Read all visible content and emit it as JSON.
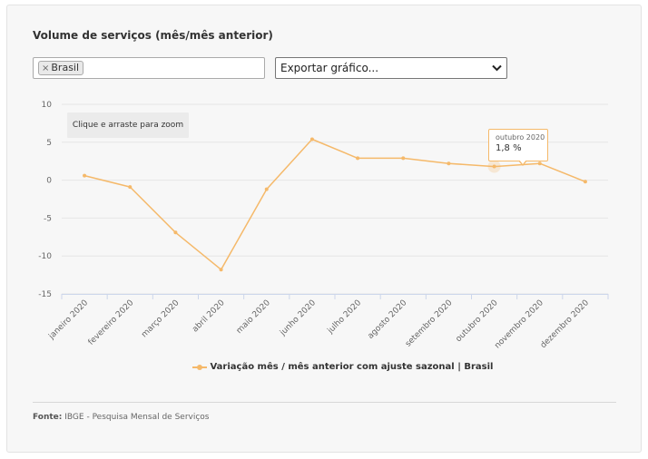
{
  "panel": {
    "title": "Volume de serviços (mês/mês anterior)",
    "filter": {
      "chip_label": "Brasil",
      "chip_remove": "×"
    },
    "export": {
      "label": "Exportar gráfico..."
    },
    "zoom_hint": "Clique e arraste para zoom",
    "source_label": "Fonte:",
    "source_text": "IBGE - Pesquisa Mensal de Serviços"
  },
  "tooltip": {
    "date": "outubro 2020",
    "value": "1,8 %"
  },
  "colors": {
    "series": "#f5b96a",
    "grid": "#e6e6e6",
    "axis": "#ccd6eb"
  },
  "chart_data": {
    "type": "line",
    "categories": [
      "janeiro 2020",
      "fevereiro 2020",
      "março 2020",
      "abril 2020",
      "maio 2020",
      "junho 2020",
      "julho 2020",
      "agosto 2020",
      "setembro 2020",
      "outubro 2020",
      "novembro 2020",
      "dezembro 2020"
    ],
    "series": [
      {
        "name": "Variação mês / mês anterior com ajuste sazonal | Brasil",
        "values": [
          0.6,
          -0.9,
          -6.9,
          -11.8,
          -1.2,
          5.4,
          2.9,
          2.9,
          2.2,
          1.8,
          2.2,
          -0.2
        ]
      }
    ],
    "ylim": [
      -15,
      10
    ],
    "yticks": [
      10,
      5,
      0,
      -5,
      -10,
      -15
    ],
    "ytick_labels": [
      "10",
      "5",
      "0",
      "-5",
      "-10",
      "-15"
    ],
    "xlabel": "",
    "ylabel": "",
    "grid": true,
    "legend": "bottom-center",
    "highlighted_index": 9
  }
}
